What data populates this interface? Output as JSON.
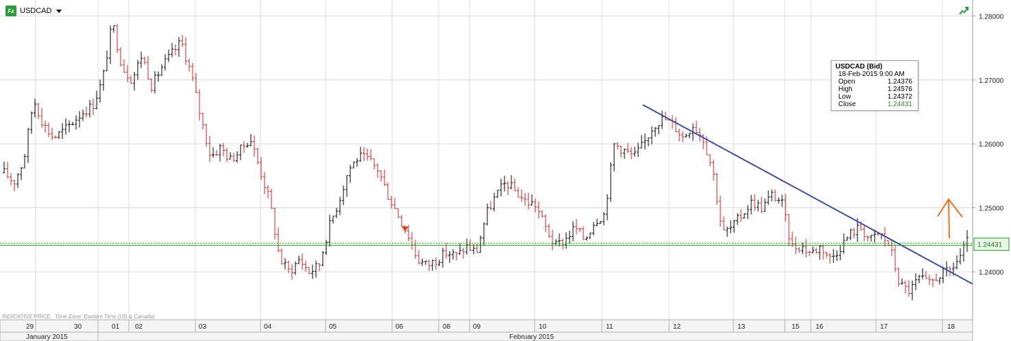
{
  "header": {
    "symbol": "USDCAD",
    "badge_text": "Fx",
    "badge_color": "#2e9a3c"
  },
  "status_bar": {
    "indicative": "INDICATIVE PRICE",
    "timezone": "Time Zone: Eastern Time (US & Canada)"
  },
  "tooltip": {
    "title": "USDCAD (Bid)",
    "date": "18-Feb-2015 9:00 AM",
    "rows": [
      {
        "label": "Open",
        "value": "1.24376"
      },
      {
        "label": "High",
        "value": "1.24576"
      },
      {
        "label": "Low",
        "value": "1.24372"
      },
      {
        "label": "Close",
        "value": "1.24431"
      }
    ]
  },
  "colors": {
    "up_bar": "#000000",
    "down_bar": "#d62020",
    "trendline": "#3a4fa0",
    "price_line": "#1a9a1a",
    "arrow": "#f07020",
    "grid": "#dcdcdc"
  },
  "chart_data": {
    "type": "ohlc",
    "symbol": "USDCAD",
    "y_axis": {
      "min": 1.2325,
      "max": 1.2825,
      "ticks": [
        "1.24000",
        "1.25000",
        "1.26000",
        "1.27000",
        "1.28000"
      ],
      "tick_values": [
        1.24,
        1.25,
        1.26,
        1.27,
        1.28
      ],
      "side": "right"
    },
    "x_axis": {
      "day_labels": [
        "29",
        "30",
        "01",
        "02",
        "03",
        "04",
        "05",
        "06",
        "08",
        "09",
        "10",
        "11",
        "12",
        "13",
        "15",
        "16",
        "17",
        "18"
      ],
      "month_labels": [
        "January 2015",
        "February 2015"
      ]
    },
    "current_price": "1.24431",
    "current_price_value": 1.24431,
    "trendline": {
      "from": [
        "11-Feb-2015",
        1.2661
      ],
      "to": [
        "18-Feb-2015",
        1.2381
      ]
    },
    "annotation": "up-arrow",
    "anchors": [
      1.2555,
      1.254,
      1.2575,
      1.267,
      1.263,
      1.261,
      1.262,
      1.2635,
      1.265,
      1.266,
      1.27,
      1.279,
      1.272,
      1.27,
      1.274,
      1.269,
      1.272,
      1.274,
      1.276,
      1.271,
      1.264,
      1.258,
      1.2595,
      1.2575,
      1.259,
      1.261,
      1.256,
      1.251,
      1.242,
      1.24,
      1.242,
      1.24,
      1.241,
      1.247,
      1.251,
      1.256,
      1.258,
      1.2575,
      1.256,
      1.252,
      1.249,
      1.246,
      1.242,
      1.241,
      1.242,
      1.243,
      1.2425,
      1.244,
      1.243,
      1.249,
      1.252,
      1.254,
      1.2525,
      1.251,
      1.2505,
      1.247,
      1.244,
      1.245,
      1.247,
      1.245,
      1.248,
      1.249,
      1.26,
      1.259,
      1.258,
      1.26,
      1.263,
      1.264,
      1.263,
      1.261,
      1.263,
      1.261,
      1.256,
      1.246,
      1.247,
      1.249,
      1.251,
      1.25,
      1.252,
      1.251,
      1.244,
      1.244,
      1.243,
      1.244,
      1.242,
      1.244,
      1.246,
      1.247,
      1.245,
      1.246,
      1.244,
      1.238,
      1.237,
      1.239,
      1.238,
      1.2395,
      1.24,
      1.242,
      1.245
    ]
  }
}
